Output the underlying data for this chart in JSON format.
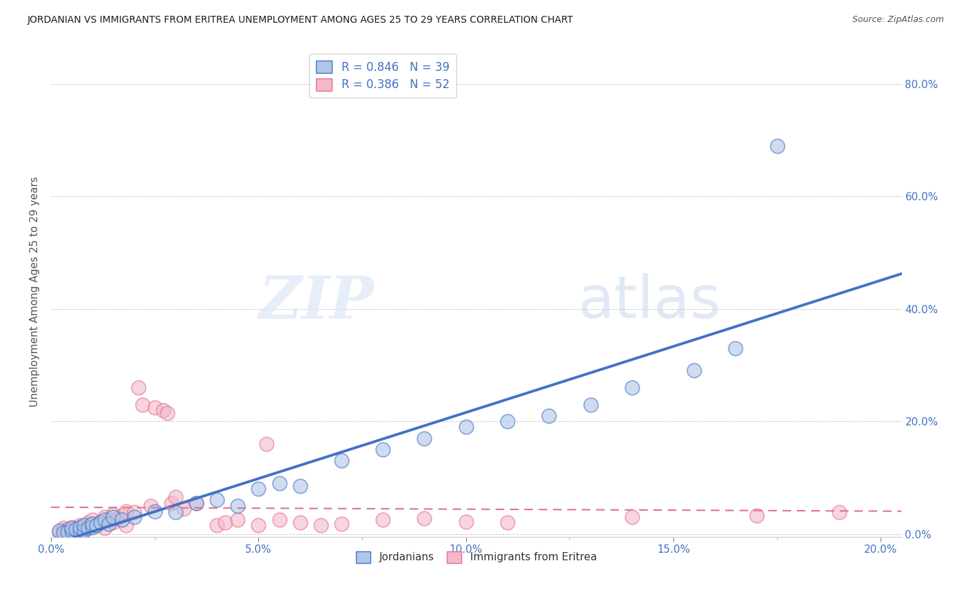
{
  "title": "JORDANIAN VS IMMIGRANTS FROM ERITREA UNEMPLOYMENT AMONG AGES 25 TO 29 YEARS CORRELATION CHART",
  "source": "Source: ZipAtlas.com",
  "ylabel": "Unemployment Among Ages 25 to 29 years",
  "xlim": [
    0.0,
    0.205
  ],
  "ylim": [
    -0.005,
    0.865
  ],
  "xticks": [
    0.0,
    0.05,
    0.1,
    0.15,
    0.2
  ],
  "yticks": [
    0.0,
    0.2,
    0.4,
    0.6,
    0.8
  ],
  "ytick_labels_right": [
    "0.0%",
    "20.0%",
    "40.0%",
    "60.0%",
    "80.0%"
  ],
  "xtick_labels": [
    "0.0%",
    "",
    "5.0%",
    "",
    "10.0%",
    "",
    "15.0%",
    "",
    "20.0%"
  ],
  "xticks_all": [
    0.0,
    0.025,
    0.05,
    0.075,
    0.1,
    0.125,
    0.15,
    0.175,
    0.2
  ],
  "watermark_zip": "ZIP",
  "watermark_atlas": "atlas",
  "legend_R1": "0.846",
  "legend_N1": "39",
  "legend_R2": "0.386",
  "legend_N2": "52",
  "color_jordanian_fill": "#aec6e8",
  "color_eritrea_fill": "#f4b8c8",
  "color_blue": "#4472c4",
  "color_pink": "#e07090",
  "background_color": "#ffffff",
  "jordanian_x": [
    0.002,
    0.003,
    0.004,
    0.005,
    0.005,
    0.006,
    0.007,
    0.007,
    0.008,
    0.008,
    0.009,
    0.01,
    0.01,
    0.011,
    0.012,
    0.013,
    0.014,
    0.015,
    0.017,
    0.02,
    0.025,
    0.03,
    0.035,
    0.04,
    0.045,
    0.05,
    0.055,
    0.06,
    0.07,
    0.08,
    0.09,
    0.1,
    0.11,
    0.12,
    0.13,
    0.14,
    0.155,
    0.165,
    0.175
  ],
  "jordanian_y": [
    0.005,
    0.002,
    0.003,
    0.006,
    0.01,
    0.008,
    0.004,
    0.012,
    0.005,
    0.015,
    0.01,
    0.012,
    0.018,
    0.015,
    0.02,
    0.025,
    0.018,
    0.03,
    0.025,
    0.03,
    0.04,
    0.038,
    0.055,
    0.06,
    0.05,
    0.08,
    0.09,
    0.085,
    0.13,
    0.15,
    0.17,
    0.19,
    0.2,
    0.21,
    0.23,
    0.26,
    0.29,
    0.33,
    0.69
  ],
  "eritrea_x": [
    0.002,
    0.003,
    0.003,
    0.004,
    0.005,
    0.005,
    0.006,
    0.007,
    0.007,
    0.008,
    0.009,
    0.009,
    0.01,
    0.01,
    0.011,
    0.012,
    0.013,
    0.013,
    0.014,
    0.015,
    0.015,
    0.016,
    0.017,
    0.018,
    0.018,
    0.02,
    0.021,
    0.022,
    0.024,
    0.025,
    0.027,
    0.028,
    0.029,
    0.03,
    0.032,
    0.035,
    0.04,
    0.042,
    0.045,
    0.05,
    0.052,
    0.055,
    0.06,
    0.065,
    0.07,
    0.08,
    0.09,
    0.1,
    0.11,
    0.14,
    0.17,
    0.19
  ],
  "eritrea_y": [
    0.003,
    0.005,
    0.01,
    0.008,
    0.004,
    0.012,
    0.006,
    0.01,
    0.015,
    0.008,
    0.012,
    0.02,
    0.018,
    0.025,
    0.015,
    0.022,
    0.01,
    0.03,
    0.025,
    0.02,
    0.035,
    0.028,
    0.032,
    0.015,
    0.04,
    0.038,
    0.26,
    0.23,
    0.05,
    0.225,
    0.22,
    0.215,
    0.055,
    0.065,
    0.045,
    0.055,
    0.015,
    0.02,
    0.025,
    0.015,
    0.16,
    0.025,
    0.02,
    0.015,
    0.018,
    0.025,
    0.028,
    0.022,
    0.02,
    0.03,
    0.032,
    0.038
  ]
}
